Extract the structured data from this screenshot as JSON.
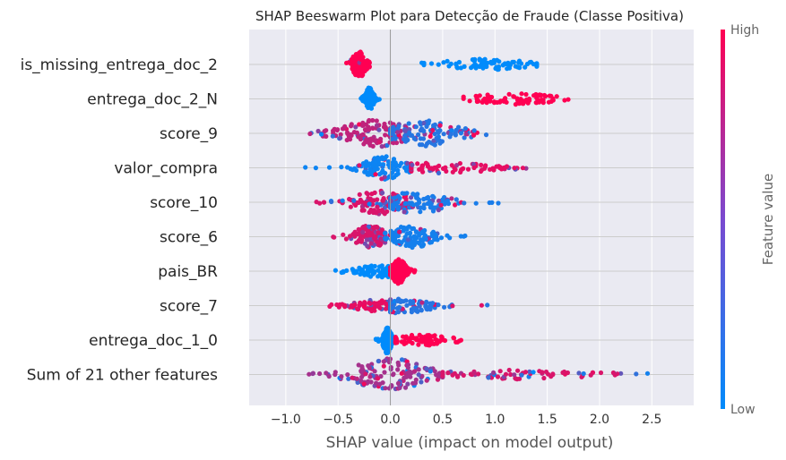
{
  "chart_data": {
    "type": "scatter",
    "subtype": "shap-beeswarm",
    "title": "SHAP Beeswarm Plot para Detecção de Fraude (Classe Positiva)",
    "xlabel": "SHAP value (impact on model output)",
    "xlim": [
      -1.35,
      2.9
    ],
    "xticks": [
      -1.0,
      -0.5,
      0.0,
      0.5,
      1.0,
      1.5,
      2.0,
      2.5
    ],
    "xtick_labels": [
      "−1.0",
      "−0.5",
      "0.0",
      "0.5",
      "1.0",
      "1.5",
      "2.0",
      "2.5"
    ],
    "grid": true,
    "colorbar": {
      "label": "Feature value",
      "high_label": "High",
      "low_label": "Low",
      "low_color": "#008bfb",
      "high_color": "#ff0052"
    },
    "features": [
      {
        "name": "is_missing_entrega_doc_2",
        "clusters": [
          {
            "center": -0.3,
            "spread": 0.05,
            "extent": [
              -0.42,
              -0.2
            ],
            "width": 14,
            "color": 1.0,
            "mix": 0.05
          },
          {
            "center": 0.9,
            "spread": 0.3,
            "extent": [
              0.3,
              1.4
            ],
            "width": 5,
            "color": 0.0,
            "mix": 0.0
          }
        ]
      },
      {
        "name": "entrega_doc_2_N",
        "clusters": [
          {
            "center": -0.2,
            "spread": 0.03,
            "extent": [
              -0.3,
              -0.1
            ],
            "width": 12,
            "color": 0.0,
            "mix": 0.0
          },
          {
            "center": 1.2,
            "spread": 0.3,
            "extent": [
              0.7,
              1.85
            ],
            "width": 5,
            "color": 1.0,
            "mix": 0.0
          }
        ]
      },
      {
        "name": "score_9",
        "clusters": [
          {
            "center": -0.15,
            "spread": 0.25,
            "extent": [
              -0.78,
              0.15
            ],
            "width": 14,
            "color": 0.75,
            "mix": 0.3
          },
          {
            "center": 0.35,
            "spread": 0.25,
            "extent": [
              0.0,
              0.95
            ],
            "width": 13,
            "color": 0.15,
            "mix": 0.3
          }
        ]
      },
      {
        "name": "valor_compra",
        "clusters": [
          {
            "center": -0.05,
            "spread": 0.15,
            "extent": [
              -1.15,
              0.2
            ],
            "width": 12,
            "color": 0.05,
            "mix": 0.1
          },
          {
            "center": 0.5,
            "spread": 0.35,
            "extent": [
              0.2,
              1.3
            ],
            "width": 5,
            "color": 0.9,
            "mix": 0.2
          }
        ]
      },
      {
        "name": "score_10",
        "clusters": [
          {
            "center": -0.1,
            "spread": 0.2,
            "extent": [
              -0.72,
              0.15
            ],
            "width": 12,
            "color": 0.85,
            "mix": 0.25
          },
          {
            "center": 0.25,
            "spread": 0.25,
            "extent": [
              0.0,
              1.05
            ],
            "width": 11,
            "color": 0.1,
            "mix": 0.2
          }
        ]
      },
      {
        "name": "score_6",
        "clusters": [
          {
            "center": -0.2,
            "spread": 0.12,
            "extent": [
              -0.62,
              -0.05
            ],
            "width": 12,
            "color": 0.85,
            "mix": 0.3
          },
          {
            "center": 0.2,
            "spread": 0.15,
            "extent": [
              -0.05,
              0.72
            ],
            "width": 12,
            "color": 0.08,
            "mix": 0.15
          }
        ]
      },
      {
        "name": "pais_BR",
        "clusters": [
          {
            "center": -0.1,
            "spread": 0.15,
            "extent": [
              -0.58,
              -0.02
            ],
            "width": 6,
            "color": 0.0,
            "mix": 0.0
          },
          {
            "center": 0.08,
            "spread": 0.05,
            "extent": [
              0.0,
              0.25
            ],
            "width": 13,
            "color": 1.0,
            "mix": 0.0
          }
        ]
      },
      {
        "name": "score_7",
        "clusters": [
          {
            "center": -0.15,
            "spread": 0.15,
            "extent": [
              -0.58,
              0.0
            ],
            "width": 5,
            "color": 0.9,
            "mix": 0.2
          },
          {
            "center": 0.1,
            "spread": 0.2,
            "extent": [
              0.0,
              0.95
            ],
            "width": 8,
            "color": 0.15,
            "mix": 0.2
          }
        ]
      },
      {
        "name": "entrega_doc_1_0",
        "clusters": [
          {
            "center": -0.03,
            "spread": 0.03,
            "extent": [
              -0.18,
              0.05
            ],
            "width": 14,
            "color": 0.0,
            "mix": 0.0
          },
          {
            "center": 0.3,
            "spread": 0.2,
            "extent": [
              0.05,
              0.75
            ],
            "width": 5,
            "color": 1.0,
            "mix": 0.0
          }
        ]
      },
      {
        "name": "Sum of 21 other features",
        "clusters": [
          {
            "center": 0.0,
            "spread": 0.28,
            "extent": [
              -0.8,
              0.9
            ],
            "width": 17,
            "color": 0.65,
            "mix": 0.45
          },
          {
            "center": 1.2,
            "spread": 0.55,
            "extent": [
              0.5,
              2.7
            ],
            "width": 4,
            "color": 0.85,
            "mix": 0.3
          }
        ]
      }
    ]
  }
}
